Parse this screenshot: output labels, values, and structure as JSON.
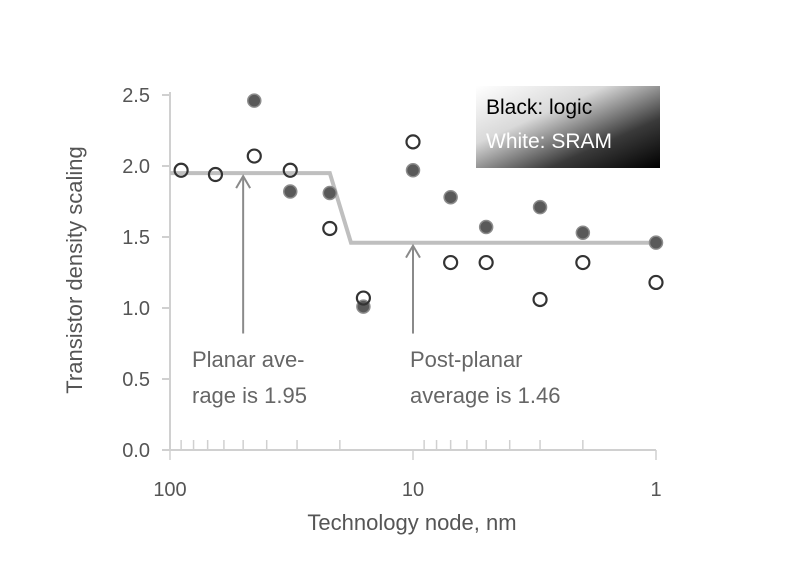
{
  "chart_data": {
    "type": "scatter",
    "title": "",
    "xlabel": "Technology node, nm",
    "ylabel": "Transistor density scaling",
    "x_scale": "log",
    "x_reversed": true,
    "xlim": [
      100,
      1
    ],
    "ylim": [
      0,
      2.5
    ],
    "x_ticks": [
      {
        "value": 100,
        "label": "100"
      },
      {
        "value": 10,
        "label": "10"
      },
      {
        "value": 1,
        "label": "1"
      }
    ],
    "y_ticks": [
      {
        "value": 2.5,
        "label": "2.5"
      },
      {
        "value": 2.0,
        "label": "2.0"
      },
      {
        "value": 1.5,
        "label": "1.5"
      },
      {
        "value": 1.0,
        "label": "1.0"
      },
      {
        "value": 0.5,
        "label": "0.5"
      },
      {
        "value": 0.0,
        "label": "0.0"
      }
    ],
    "legend": {
      "placement": "top-right",
      "lines": [
        "Black: logic",
        "White: SRAM"
      ]
    },
    "series": [
      {
        "key": "logic",
        "style": "filled",
        "color": "#595959",
        "points": [
          {
            "x": 45,
            "y": 2.46
          },
          {
            "x": 32,
            "y": 1.82
          },
          {
            "x": 22,
            "y": 1.81
          },
          {
            "x": 16,
            "y": 1.01
          },
          {
            "x": 10,
            "y": 1.97
          },
          {
            "x": 7,
            "y": 1.78
          },
          {
            "x": 5,
            "y": 1.57
          },
          {
            "x": 3,
            "y": 1.71
          },
          {
            "x": 2,
            "y": 1.53
          },
          {
            "x": 1,
            "y": 1.46
          }
        ]
      },
      {
        "key": "sram",
        "style": "hollow",
        "color": "#333333",
        "points": [
          {
            "x": 90,
            "y": 1.97
          },
          {
            "x": 65,
            "y": 1.94
          },
          {
            "x": 45,
            "y": 2.07
          },
          {
            "x": 32,
            "y": 1.97
          },
          {
            "x": 22,
            "y": 1.56
          },
          {
            "x": 16,
            "y": 1.07
          },
          {
            "x": 10,
            "y": 2.17
          },
          {
            "x": 7,
            "y": 1.32
          },
          {
            "x": 5,
            "y": 1.32
          },
          {
            "x": 3,
            "y": 1.06
          },
          {
            "x": 2,
            "y": 1.32
          },
          {
            "x": 1,
            "y": 1.18
          }
        ]
      }
    ],
    "average_line": {
      "color": "#bfbfbf",
      "points": [
        {
          "x": 100,
          "y": 1.95
        },
        {
          "x": 22,
          "y": 1.95
        },
        {
          "x": 18,
          "y": 1.46
        },
        {
          "x": 1,
          "y": 1.46
        }
      ]
    },
    "annotations": [
      {
        "lines": [
          "Planar ave-",
          "rage is 1.95"
        ],
        "arrow_x": 50,
        "arrow_y_from": 0.82,
        "arrow_y_to": 1.95
      },
      {
        "lines": [
          "Post-planar",
          "average is 1.46"
        ],
        "arrow_x": 10,
        "arrow_y_from": 0.82,
        "arrow_y_to": 1.46
      }
    ]
  }
}
